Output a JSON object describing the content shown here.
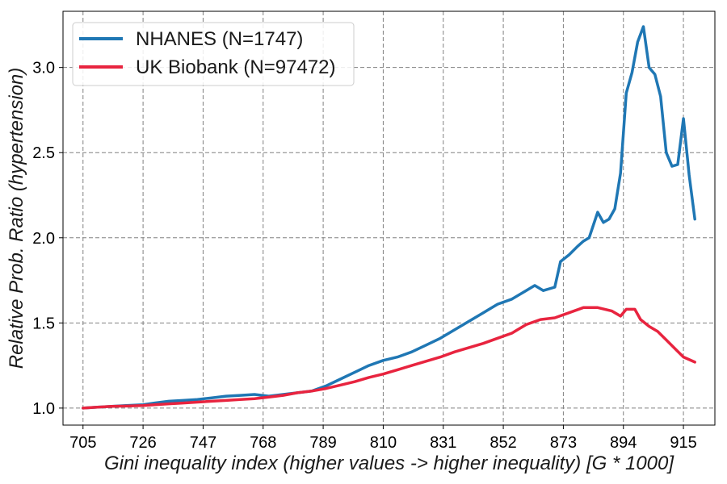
{
  "chart_data": {
    "type": "line",
    "title": "",
    "xlabel": "Gini inequality index (higher values -> higher inequality) [G * 1000]",
    "ylabel": "Relative Prob. Ratio (hypertension)",
    "xlim": [
      698,
      926
    ],
    "ylim": [
      0.9,
      3.33
    ],
    "xticks": [
      705,
      726,
      747,
      768,
      789,
      810,
      831,
      852,
      873,
      894,
      915
    ],
    "yticks": [
      1.0,
      1.5,
      2.0,
      2.5,
      3.0
    ],
    "ytick_labels": [
      "1.0",
      "1.5",
      "2.0",
      "2.5",
      "3.0"
    ],
    "grid": true,
    "legend_position": "top-left",
    "series": [
      {
        "name": "NHANES (N=1747)",
        "color": "#1f77b4",
        "x": [
          705,
          710,
          715,
          720,
          726,
          730,
          735,
          740,
          745,
          750,
          755,
          760,
          765,
          770,
          775,
          780,
          785,
          790,
          795,
          800,
          805,
          810,
          815,
          820,
          825,
          830,
          835,
          840,
          845,
          850,
          855,
          860,
          863,
          866,
          870,
          872,
          875,
          878,
          880,
          882,
          885,
          887,
          889,
          891,
          893,
          895,
          897,
          899,
          901,
          903,
          905,
          907,
          909,
          911,
          913,
          915,
          917,
          919
        ],
        "y": [
          1.0,
          1.005,
          1.01,
          1.015,
          1.02,
          1.03,
          1.04,
          1.045,
          1.05,
          1.06,
          1.07,
          1.075,
          1.08,
          1.07,
          1.08,
          1.09,
          1.1,
          1.13,
          1.17,
          1.21,
          1.25,
          1.28,
          1.3,
          1.33,
          1.37,
          1.41,
          1.46,
          1.51,
          1.56,
          1.61,
          1.64,
          1.69,
          1.72,
          1.69,
          1.71,
          1.86,
          1.9,
          1.95,
          1.98,
          2.0,
          2.15,
          2.09,
          2.11,
          2.17,
          2.38,
          2.85,
          2.97,
          3.15,
          3.24,
          3.0,
          2.96,
          2.83,
          2.5,
          2.42,
          2.43,
          2.7,
          2.37,
          2.11
        ]
      },
      {
        "name": "UK Biobank (N=97472)",
        "color": "#e8243f",
        "x": [
          705,
          710,
          715,
          720,
          726,
          730,
          735,
          740,
          745,
          750,
          755,
          760,
          765,
          770,
          775,
          780,
          785,
          790,
          795,
          800,
          805,
          810,
          815,
          820,
          825,
          830,
          835,
          840,
          845,
          850,
          855,
          860,
          865,
          870,
          875,
          880,
          885,
          890,
          893,
          895,
          898,
          900,
          903,
          906,
          909,
          912,
          915,
          919
        ],
        "y": [
          1.0,
          1.005,
          1.01,
          1.012,
          1.015,
          1.02,
          1.025,
          1.03,
          1.035,
          1.04,
          1.045,
          1.05,
          1.055,
          1.065,
          1.075,
          1.09,
          1.1,
          1.115,
          1.135,
          1.155,
          1.18,
          1.2,
          1.225,
          1.25,
          1.275,
          1.3,
          1.33,
          1.355,
          1.38,
          1.41,
          1.44,
          1.49,
          1.52,
          1.53,
          1.56,
          1.59,
          1.59,
          1.57,
          1.54,
          1.58,
          1.58,
          1.52,
          1.48,
          1.45,
          1.4,
          1.35,
          1.3,
          1.27
        ]
      }
    ]
  }
}
